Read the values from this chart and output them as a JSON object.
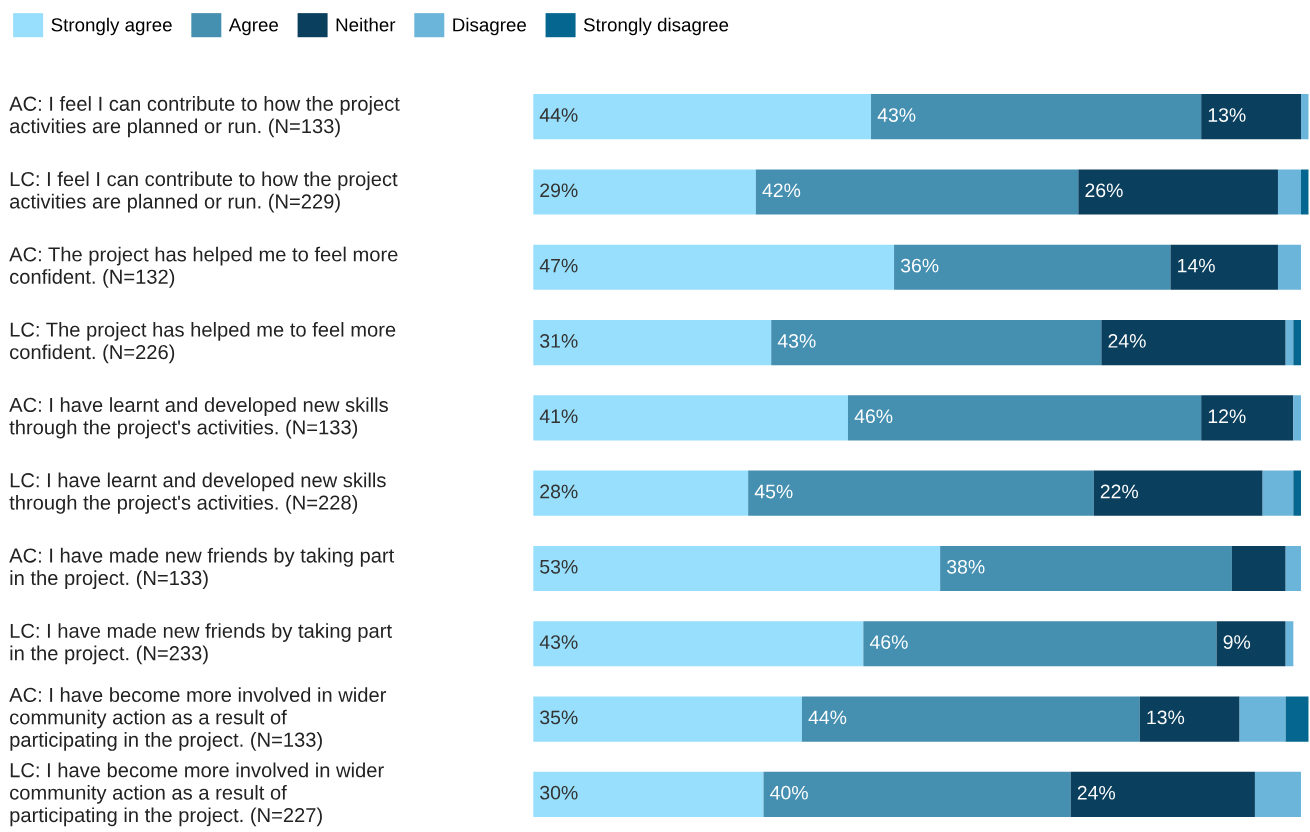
{
  "chart_data": {
    "type": "bar",
    "orientation": "horizontal",
    "stacked": true,
    "legend": "top left",
    "tick_labels": "y",
    "categories": [
      "AC: I feel I can contribute to how the project\nactivities are planned or run. (N=133)",
      "LC: I feel I can contribute to how the project\nactivities are planned or run. (N=229)",
      "AC: The project has helped me to feel more\nconfident. (N=132)",
      "LC: The project has helped me to feel more\nconfident. (N=226)",
      "AC: I have learnt and developed new skills\nthrough the project's activities. (N=133)",
      "LC: I have learnt and developed new skills\nthrough the project's activities. (N=228)",
      "AC: I have made new friends by taking part\nin the project. (N=133)",
      "LC: I have made new friends by taking part\nin the project. (N=233)",
      "AC: I have become more involved in wider\ncommunity action as a result of\nparticipating in the project. (N=133)",
      "LC: I have become more involved in wider\ncommunity action as a result of\nparticipating in the project. (N=227)"
    ],
    "series": [
      {
        "name": "Strongly agree",
        "color": "#97dffc",
        "values": [
          44,
          29,
          47,
          31,
          41,
          28,
          53,
          43,
          35,
          30
        ],
        "value_labels": [
          "44%",
          "29%",
          "47%",
          "31%",
          "41%",
          "28%",
          "53%",
          "43%",
          "35%",
          "30%"
        ]
      },
      {
        "name": "Agree",
        "color": "#458fb1",
        "values": [
          43,
          42,
          36,
          43,
          46,
          45,
          38,
          46,
          44,
          40
        ],
        "value_labels": [
          "43%",
          "42%",
          "36%",
          "43%",
          "46%",
          "45%",
          "38%",
          "46%",
          "44%",
          "40%"
        ]
      },
      {
        "name": "Neither",
        "color": "#0b3f5e",
        "values": [
          13,
          26,
          14,
          24,
          12,
          22,
          7,
          9,
          13,
          24
        ],
        "value_labels": [
          "13%",
          "26%",
          "14%",
          "24%",
          "12%",
          "22%",
          null,
          "9%",
          "13%",
          "24%"
        ]
      },
      {
        "name": "Disagree",
        "color": "#6cb5da",
        "values": [
          1,
          3,
          3,
          1,
          1,
          4,
          2,
          1,
          6,
          6
        ],
        "value_labels": [
          null,
          null,
          null,
          null,
          null,
          null,
          null,
          null,
          null,
          null
        ]
      },
      {
        "name": "Strongly disagree",
        "color": "#05678f",
        "values": [
          0,
          1,
          0,
          1,
          0,
          1,
          0,
          0,
          3,
          0
        ],
        "value_labels": [
          null,
          null,
          null,
          null,
          null,
          null,
          null,
          null,
          null,
          null
        ]
      }
    ]
  }
}
